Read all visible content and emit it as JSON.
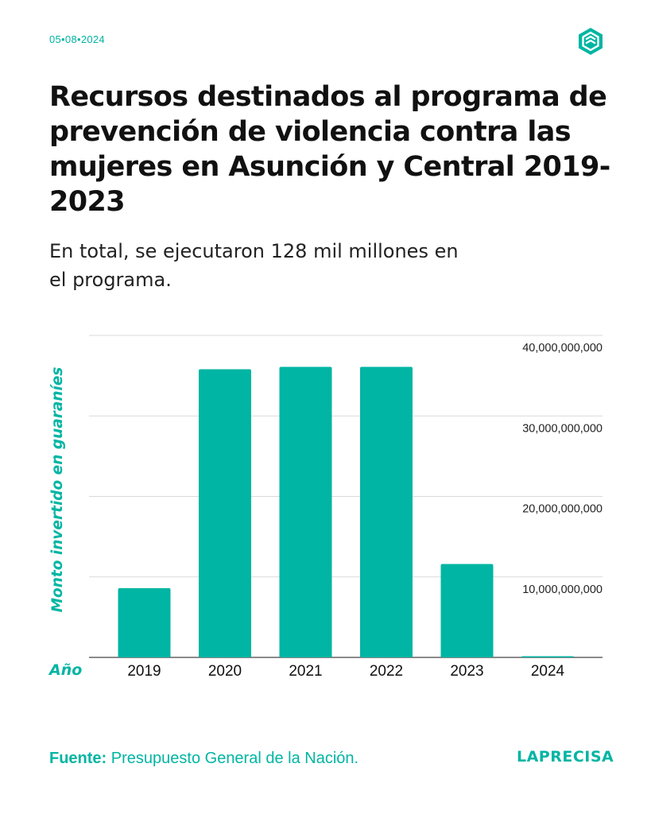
{
  "header": {
    "date": "05•08•2024",
    "logo_icon": "la-precisa-hexagon-icon"
  },
  "title": "Recursos destinados al programa de prevención de violencia contra las mujeres en Asunción y Central 2019-2023",
  "subtitle": "En total, se ejecutaron 128 mil millones en el programa.",
  "chart_data": {
    "type": "bar",
    "title": "Recursos destinados al programa de prevención de violencia contra las mujeres en Asunción y Central 2019-2023",
    "xlabel": "Año",
    "ylabel": "Monto invertido en guaraníes",
    "categories": [
      "2019",
      "2020",
      "2021",
      "2022",
      "2023",
      "2024"
    ],
    "values": [
      8600000000,
      35800000000,
      36100000000,
      36100000000,
      11600000000,
      100000000
    ],
    "ylim": [
      0,
      40000000000
    ],
    "yticks": [
      10000000000,
      20000000000,
      30000000000,
      40000000000
    ],
    "ytick_labels": [
      "10,000,000,000",
      "20,000,000,000",
      "30,000,000,000",
      "40,000,000,000"
    ],
    "grid": true,
    "y_axis_position": "right"
  },
  "footer": {
    "source_label": "Fuente:",
    "source_text": "Presupuesto General de la Nación.",
    "brand": "LAPRECISA"
  },
  "colors": {
    "accent": "#00b5a3",
    "bar": "#00b5a3",
    "grid": "#d9d9d9",
    "axis": "#444444",
    "text": "#111111"
  }
}
